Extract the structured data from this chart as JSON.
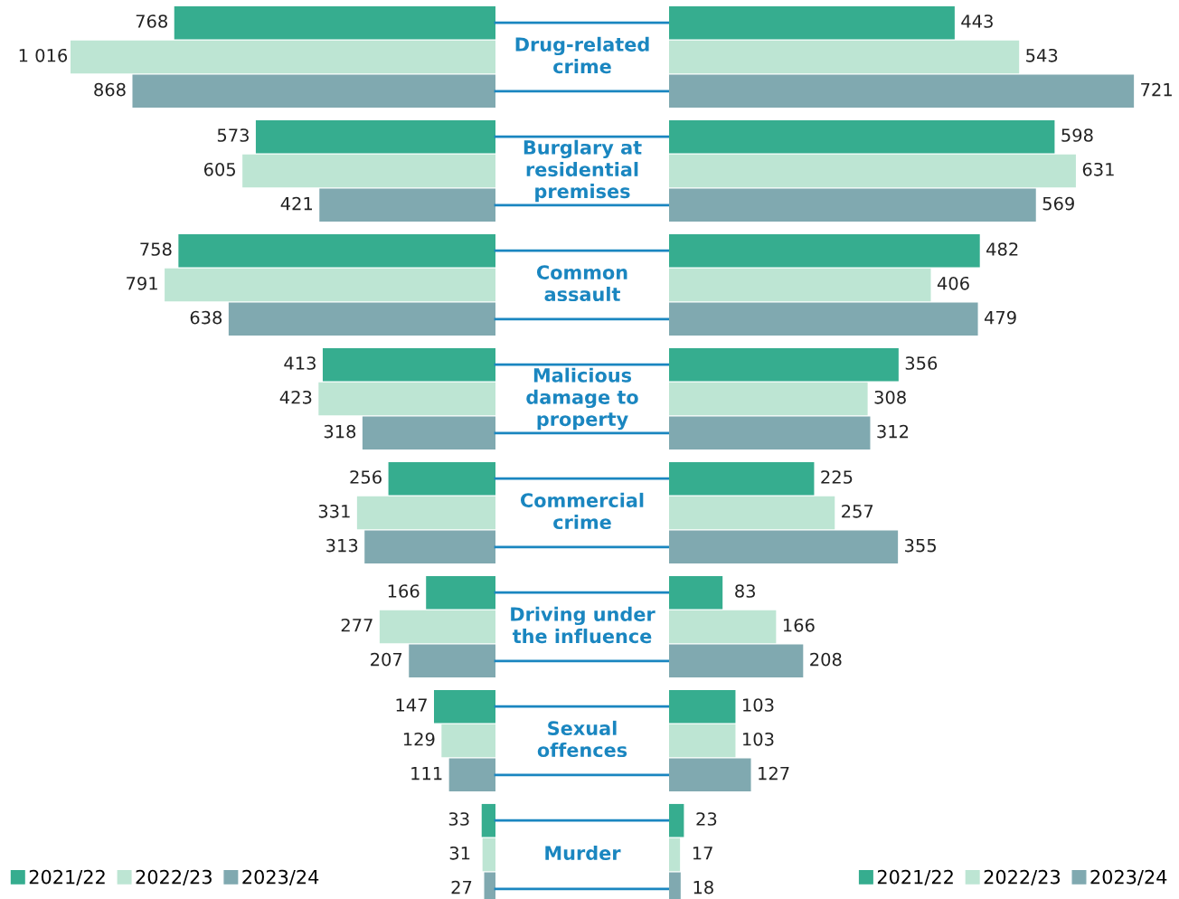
{
  "chart_data": [
    {
      "type": "bar",
      "orientation": "horizontal",
      "categories": [
        "Drug-related\ncrime",
        "Burglary at\nresidential\npremises",
        "Common\nassault",
        "Malicious\ndamage to\nproperty",
        "Commercial\ncrime",
        "Driving under\nthe influence",
        "Sexual\noffences",
        "Murder"
      ],
      "tick_labels": false,
      "data_labels": true,
      "legend": "bottom left",
      "series": [
        {
          "name": "2021/22",
          "color": "#36ad8f",
          "values": [
            768,
            573,
            758,
            413,
            256,
            166,
            147,
            33
          ]
        },
        {
          "name": "2022/23",
          "color": "#bde5d3",
          "values": [
            1016,
            605,
            791,
            423,
            331,
            277,
            129,
            31
          ]
        },
        {
          "name": "2023/24",
          "color": "#80a9b0",
          "values": [
            868,
            421,
            638,
            318,
            313,
            207,
            111,
            27
          ]
        }
      ]
    },
    {
      "type": "bar",
      "orientation": "horizontal",
      "categories": [
        null,
        null,
        null,
        null,
        null,
        null,
        null,
        null
      ],
      "tick_labels": false,
      "data_labels": true,
      "legend": "bottom right",
      "series": [
        {
          "name": "2021/22",
          "color": "#36ad8f",
          "values": [
            443,
            598,
            482,
            356,
            225,
            83,
            103,
            23
          ]
        },
        {
          "name": "2022/23",
          "color": "#bde5d3",
          "values": [
            543,
            631,
            406,
            308,
            257,
            166,
            103,
            17
          ]
        },
        {
          "name": "2023/24",
          "color": "#80a9b0",
          "values": [
            721,
            569,
            479,
            312,
            355,
            208,
            127,
            18
          ]
        }
      ]
    }
  ]
}
